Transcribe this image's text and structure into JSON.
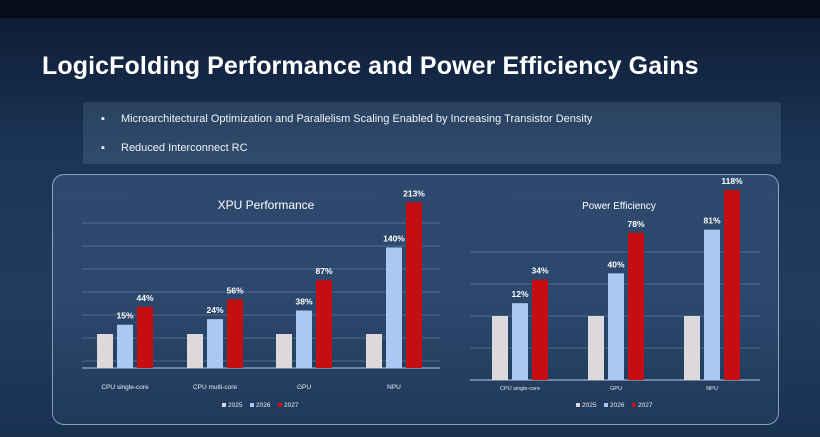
{
  "slide": {
    "title": "LogicFolding Performance and Power Efficiency Gains",
    "bullets": [
      "Microarchitectural Optimization and Parallelism Scaling Enabled by Increasing Transistor Density",
      "Reduced Interconnect RC"
    ]
  },
  "colors": {
    "2025": "#dcd8dc",
    "2026": "#a9c8f2",
    "2027": "#c40e12",
    "label": "#ffffff",
    "grid": "#8597b3"
  },
  "chart_data": [
    {
      "type": "bar",
      "title": "XPU Performance",
      "categories": [
        "CPU single-core",
        "CPU multi-core",
        "GPU",
        "NPU"
      ],
      "series": [
        {
          "name": "2025",
          "values": [
            0,
            0,
            0,
            0
          ]
        },
        {
          "name": "2026",
          "values": [
            15,
            24,
            38,
            140
          ]
        },
        {
          "name": "2027",
          "values": [
            44,
            56,
            87,
            213
          ]
        }
      ],
      "data_labels": {
        "2026": [
          "15%",
          "24%",
          "38%",
          "140%"
        ],
        "2027": [
          "44%",
          "56%",
          "87%",
          "213%"
        ]
      },
      "ylim": [
        -55,
        230
      ],
      "grid": true,
      "legend": "bottom"
    },
    {
      "type": "bar",
      "title": "Power Efficiency",
      "categories": [
        "CPU single-core",
        "GPU",
        "NPU"
      ],
      "series": [
        {
          "name": "2025",
          "values": [
            0,
            0,
            0
          ]
        },
        {
          "name": "2026",
          "values": [
            12,
            40,
            81
          ]
        },
        {
          "name": "2027",
          "values": [
            34,
            78,
            118
          ]
        }
      ],
      "data_labels": {
        "2026": [
          "12%",
          "40%",
          "81%"
        ],
        "2027": [
          "34%",
          "78%",
          "118%"
        ]
      },
      "ylim": [
        -60,
        125
      ],
      "grid": true,
      "legend": "bottom"
    }
  ]
}
